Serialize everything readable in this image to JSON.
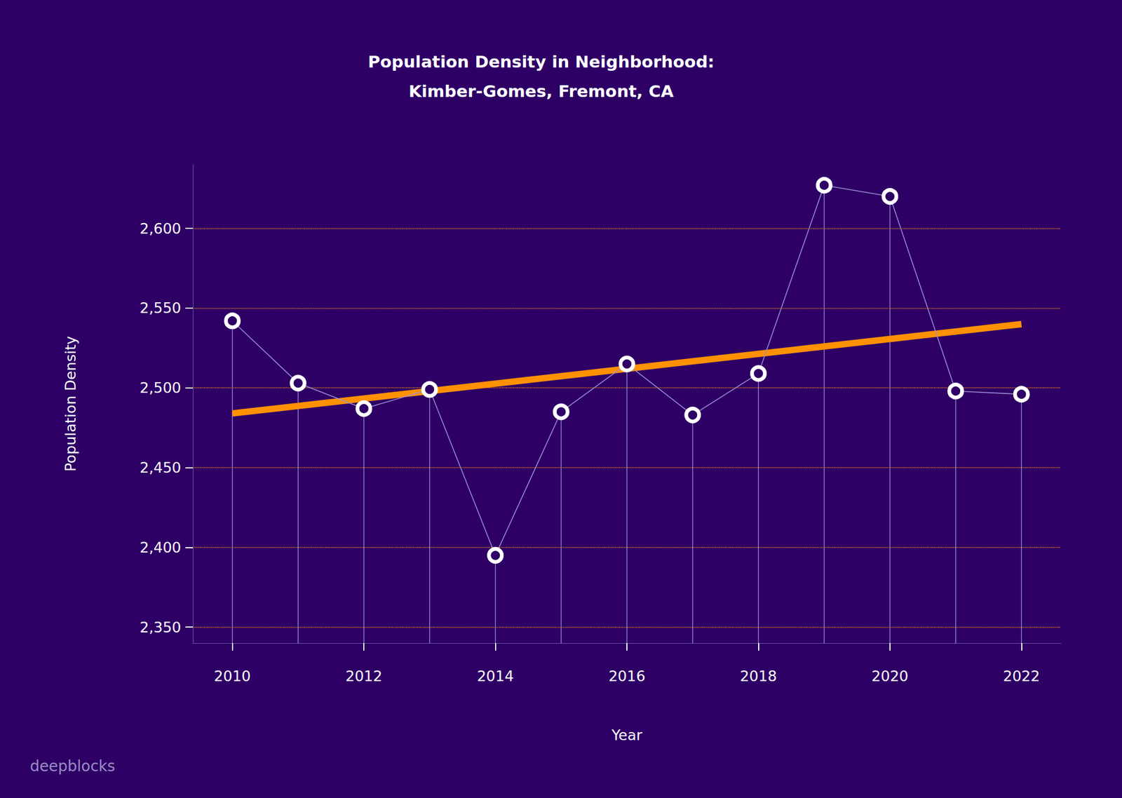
{
  "chart_data": {
    "type": "line",
    "title": "Population Density in Neighborhood:\nKimber-Gomes, Fremont, CA",
    "x_label": "Year",
    "y_label": "Population Density",
    "x": [
      2010,
      2011,
      2012,
      2013,
      2014,
      2015,
      2016,
      2017,
      2018,
      2019,
      2020,
      2021,
      2022
    ],
    "series": [
      {
        "values": [
          2542,
          2503,
          2487,
          2499,
          2395,
          2485,
          2515,
          2483,
          2509,
          2627,
          2620,
          2498,
          2496
        ],
        "color": "#ffffff",
        "marker": "circle",
        "line_style": "solid"
      }
    ],
    "trend": {
      "x": [
        2010,
        2022
      ],
      "values": [
        2484,
        2540
      ],
      "color": "#ff9100"
    },
    "xlim": [
      2009.4,
      2022.6
    ],
    "xticks": [
      2010,
      2012,
      2014,
      2016,
      2018,
      2020,
      2022
    ],
    "ylim": [
      2340,
      2640
    ],
    "yticks": [
      {
        "value": 2350,
        "label": "2,350"
      },
      {
        "value": 2400,
        "label": "2,400"
      },
      {
        "value": 2450,
        "label": "2,450"
      },
      {
        "value": 2500,
        "label": "2,500"
      },
      {
        "value": 2550,
        "label": "2,550"
      },
      {
        "value": 2600,
        "label": "2,600"
      }
    ],
    "grid": true,
    "watermark": "deepblocks"
  }
}
